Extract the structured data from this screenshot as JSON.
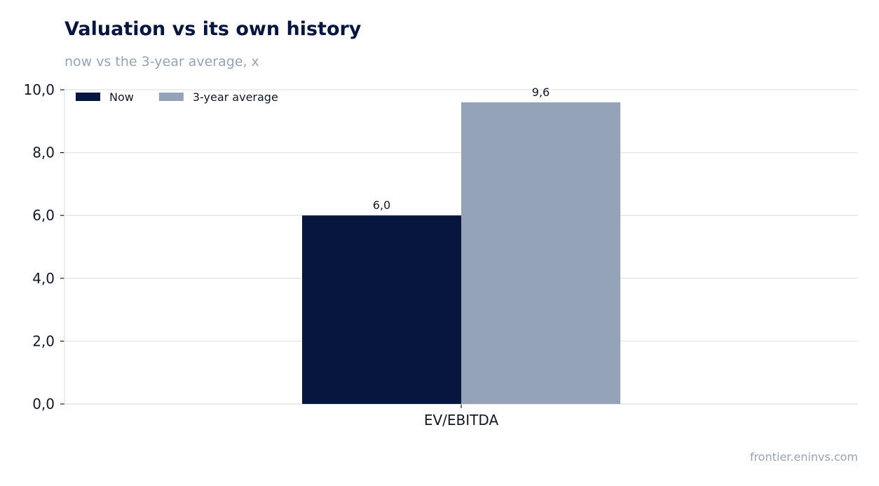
{
  "header": {
    "title": "Valuation vs its own history",
    "subtitle": "now vs the 3-year average, x"
  },
  "footer": {
    "source": "frontier.eninvs.com"
  },
  "chart_data": {
    "type": "bar",
    "categories": [
      "EV/EBITDA"
    ],
    "series": [
      {
        "name": "Now",
        "values": [
          6.0
        ],
        "labels": [
          "6,0"
        ],
        "color": "#06163f"
      },
      {
        "name": "3-year average",
        "values": [
          9.6
        ],
        "labels": [
          "9,6"
        ],
        "color": "#94a3b8"
      }
    ],
    "ylim": [
      0,
      10
    ],
    "yticks": [
      0,
      2,
      4,
      6,
      8,
      10
    ],
    "ytick_labels": [
      "0,0",
      "2,0",
      "4,0",
      "6,0",
      "8,0",
      "10,0"
    ],
    "grid": true,
    "legend": "top-left",
    "colors": {
      "grid": "#e5e7eb",
      "axis": "#111827"
    }
  }
}
